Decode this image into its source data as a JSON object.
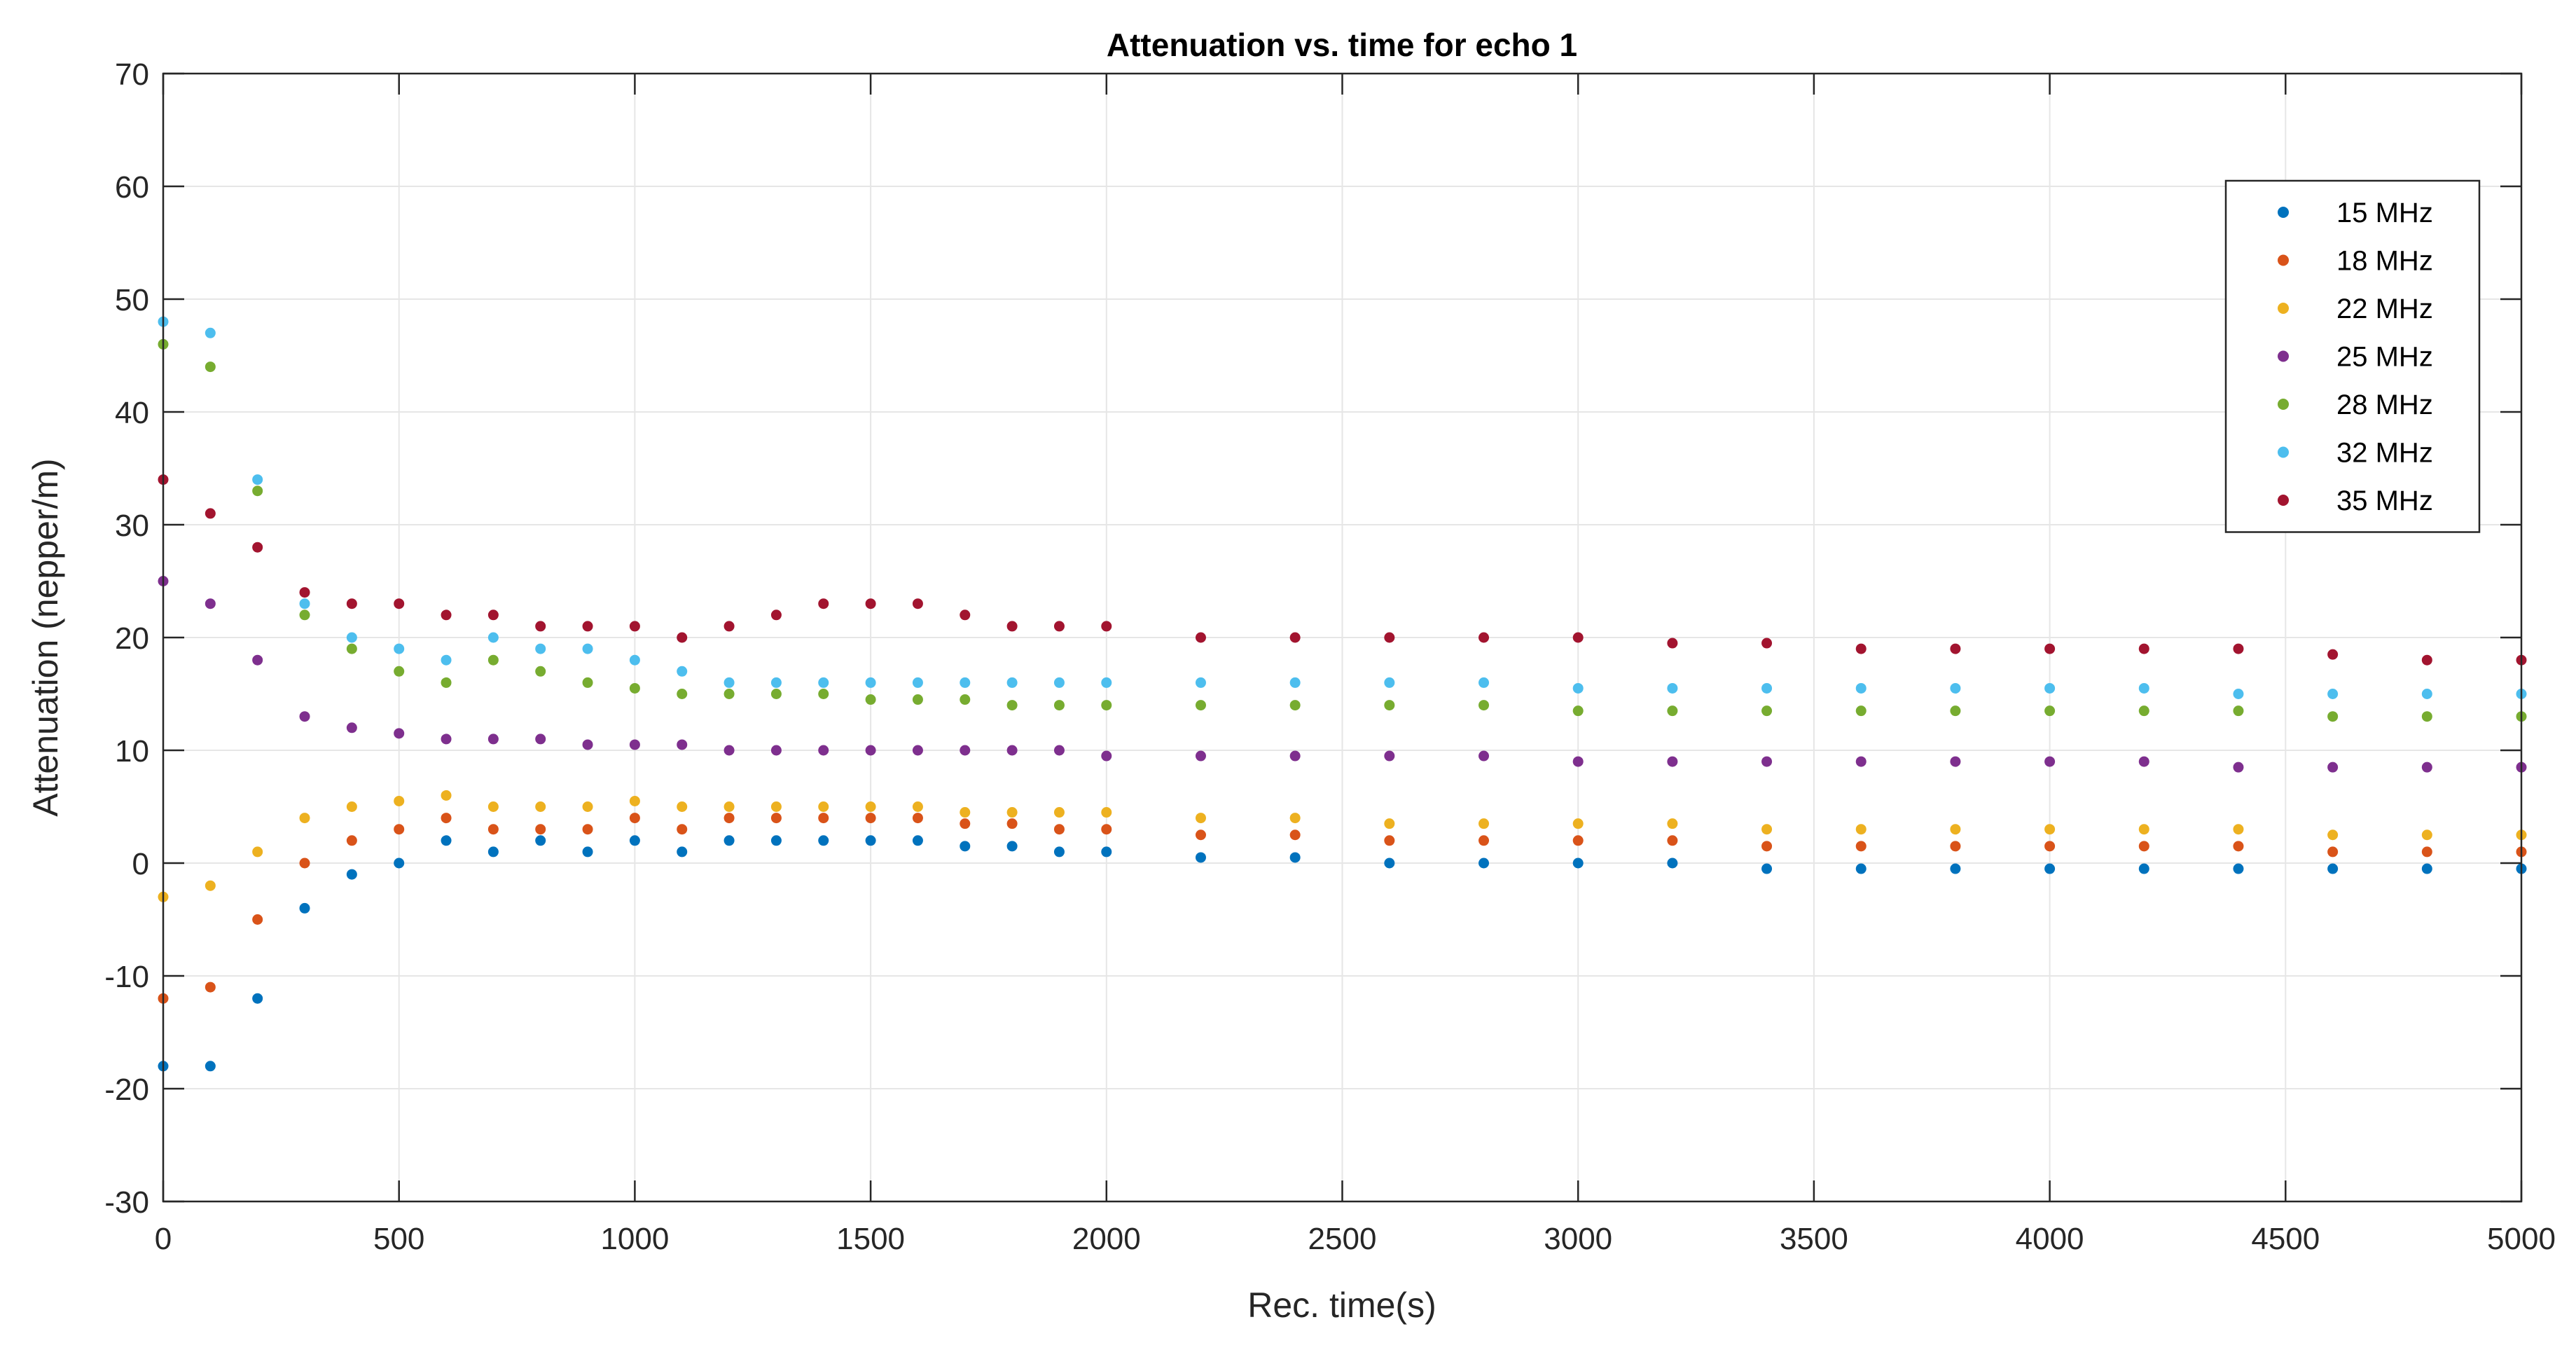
{
  "chart_data": {
    "type": "scatter",
    "title": "Attenuation vs. time for echo 1",
    "xlabel": "Rec. time(s)",
    "ylabel": "Attenuation (nepper/m)",
    "xlim": [
      0,
      5000
    ],
    "ylim": [
      -30,
      70
    ],
    "xticks": [
      0,
      500,
      1000,
      1500,
      2000,
      2500,
      3000,
      3500,
      4000,
      4500,
      5000
    ],
    "yticks": [
      -30,
      -20,
      -10,
      0,
      10,
      20,
      30,
      40,
      50,
      60,
      70
    ],
    "grid": true,
    "legend_position": "top-right",
    "series": [
      {
        "name": "15 MHz",
        "color": "#0072BD",
        "x": [
          0,
          100,
          200,
          300,
          400,
          500,
          600,
          700,
          800,
          900,
          1000,
          1100,
          1200,
          1300,
          1400,
          1500,
          1600,
          1700,
          1800,
          1900,
          2000,
          2200,
          2400,
          2600,
          2800,
          3000,
          3200,
          3400,
          3600,
          3800,
          4000,
          4200,
          4400,
          4600,
          4800,
          5000
        ],
        "values": [
          -18,
          -18,
          -12,
          -4,
          -1,
          0,
          2,
          1,
          2,
          1,
          2,
          1,
          2,
          2,
          2,
          2,
          2,
          1.5,
          1.5,
          1,
          1,
          0.5,
          0.5,
          0,
          0,
          0,
          0,
          -0.5,
          -0.5,
          -0.5,
          -0.5,
          -0.5,
          -0.5,
          -0.5,
          -0.5,
          -0.5
        ]
      },
      {
        "name": "18 MHz",
        "color": "#D95319",
        "x": [
          0,
          100,
          200,
          300,
          400,
          500,
          600,
          700,
          800,
          900,
          1000,
          1100,
          1200,
          1300,
          1400,
          1500,
          1600,
          1700,
          1800,
          1900,
          2000,
          2200,
          2400,
          2600,
          2800,
          3000,
          3200,
          3400,
          3600,
          3800,
          4000,
          4200,
          4400,
          4600,
          4800,
          5000
        ],
        "values": [
          -12,
          -11,
          -5,
          0,
          2,
          3,
          4,
          3,
          3,
          3,
          4,
          3,
          4,
          4,
          4,
          4,
          4,
          3.5,
          3.5,
          3,
          3,
          2.5,
          2.5,
          2,
          2,
          2,
          2,
          1.5,
          1.5,
          1.5,
          1.5,
          1.5,
          1.5,
          1,
          1,
          1
        ]
      },
      {
        "name": "22 MHz",
        "color": "#EDB120",
        "x": [
          0,
          100,
          200,
          300,
          400,
          500,
          600,
          700,
          800,
          900,
          1000,
          1100,
          1200,
          1300,
          1400,
          1500,
          1600,
          1700,
          1800,
          1900,
          2000,
          2200,
          2400,
          2600,
          2800,
          3000,
          3200,
          3400,
          3600,
          3800,
          4000,
          4200,
          4400,
          4600,
          4800,
          5000
        ],
        "values": [
          -3,
          -2,
          1,
          4,
          5,
          5.5,
          6,
          5,
          5,
          5,
          5.5,
          5,
          5,
          5,
          5,
          5,
          5,
          4.5,
          4.5,
          4.5,
          4.5,
          4,
          4,
          3.5,
          3.5,
          3.5,
          3.5,
          3,
          3,
          3,
          3,
          3,
          3,
          2.5,
          2.5,
          2.5
        ]
      },
      {
        "name": "25 MHz",
        "color": "#7E2F8E",
        "x": [
          0,
          100,
          200,
          300,
          400,
          500,
          600,
          700,
          800,
          900,
          1000,
          1100,
          1200,
          1300,
          1400,
          1500,
          1600,
          1700,
          1800,
          1900,
          2000,
          2200,
          2400,
          2600,
          2800,
          3000,
          3200,
          3400,
          3600,
          3800,
          4000,
          4200,
          4400,
          4600,
          4800,
          5000
        ],
        "values": [
          25,
          23,
          18,
          13,
          12,
          11.5,
          11,
          11,
          11,
          10.5,
          10.5,
          10.5,
          10,
          10,
          10,
          10,
          10,
          10,
          10,
          10,
          9.5,
          9.5,
          9.5,
          9.5,
          9.5,
          9,
          9,
          9,
          9,
          9,
          9,
          9,
          8.5,
          8.5,
          8.5,
          8.5
        ]
      },
      {
        "name": "28 MHz",
        "color": "#77AC30",
        "x": [
          0,
          100,
          200,
          300,
          400,
          500,
          600,
          700,
          800,
          900,
          1000,
          1100,
          1200,
          1300,
          1400,
          1500,
          1600,
          1700,
          1800,
          1900,
          2000,
          2200,
          2400,
          2600,
          2800,
          3000,
          3200,
          3400,
          3600,
          3800,
          4000,
          4200,
          4400,
          4600,
          4800,
          5000
        ],
        "values": [
          46,
          44,
          33,
          22,
          19,
          17,
          16,
          18,
          17,
          16,
          15.5,
          15,
          15,
          15,
          15,
          14.5,
          14.5,
          14.5,
          14,
          14,
          14,
          14,
          14,
          14,
          14,
          13.5,
          13.5,
          13.5,
          13.5,
          13.5,
          13.5,
          13.5,
          13.5,
          13,
          13,
          13
        ]
      },
      {
        "name": "32 MHz",
        "color": "#4DBEEE",
        "x": [
          0,
          100,
          200,
          300,
          400,
          500,
          600,
          700,
          800,
          900,
          1000,
          1100,
          1200,
          1300,
          1400,
          1500,
          1600,
          1700,
          1800,
          1900,
          2000,
          2200,
          2400,
          2600,
          2800,
          3000,
          3200,
          3400,
          3600,
          3800,
          4000,
          4200,
          4400,
          4600,
          4800,
          5000
        ],
        "values": [
          48,
          47,
          34,
          23,
          20,
          19,
          18,
          20,
          19,
          19,
          18,
          17,
          16,
          16,
          16,
          16,
          16,
          16,
          16,
          16,
          16,
          16,
          16,
          16,
          16,
          15.5,
          15.5,
          15.5,
          15.5,
          15.5,
          15.5,
          15.5,
          15,
          15,
          15,
          15
        ]
      },
      {
        "name": "35 MHz",
        "color": "#A2142F",
        "x": [
          0,
          100,
          200,
          300,
          400,
          500,
          600,
          700,
          800,
          900,
          1000,
          1100,
          1200,
          1300,
          1400,
          1500,
          1600,
          1700,
          1800,
          1900,
          2000,
          2200,
          2400,
          2600,
          2800,
          3000,
          3200,
          3400,
          3600,
          3800,
          4000,
          4200,
          4400,
          4600,
          4800,
          5000
        ],
        "values": [
          34,
          31,
          28,
          24,
          23,
          23,
          22,
          22,
          21,
          21,
          21,
          20,
          21,
          22,
          23,
          23,
          23,
          22,
          21,
          21,
          21,
          20,
          20,
          20,
          20,
          20,
          19.5,
          19.5,
          19,
          19,
          19,
          19,
          19,
          18.5,
          18,
          18
        ]
      }
    ]
  }
}
